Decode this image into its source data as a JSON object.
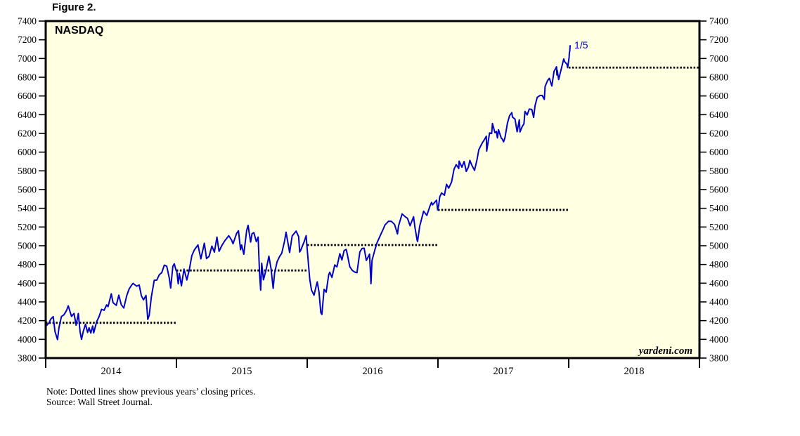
{
  "figure_label": "Figure 2.",
  "notes": {
    "note": "Note: Dotted lines show previous years’ closing prices.",
    "source": "Source: Wall Street Journal."
  },
  "chart_data": {
    "type": "line",
    "title": "NASDAQ",
    "watermark": "yardeni.com",
    "plot_background": "#FFFFE1",
    "frame_color": "#000000",
    "x_range": [
      "2014-01-01",
      "2019-01-01"
    ],
    "ylim": [
      3800,
      7400
    ],
    "yticks": [
      3800,
      4000,
      4200,
      4400,
      4600,
      4800,
      5000,
      5200,
      5400,
      5600,
      5800,
      6000,
      6200,
      6400,
      6600,
      6800,
      7000,
      7200,
      7400
    ],
    "year_labels": [
      "2014",
      "2015",
      "2016",
      "2017",
      "2018"
    ],
    "annotation": {
      "text": "1/5",
      "date": "2018-01-05",
      "value": 7137
    },
    "reference_lines": [
      {
        "value": 4176.59,
        "start": "2014-01-01",
        "end": "2015-01-01"
      },
      {
        "value": 4736.05,
        "start": "2015-01-01",
        "end": "2016-01-01"
      },
      {
        "value": 5007.41,
        "start": "2016-01-01",
        "end": "2017-01-01"
      },
      {
        "value": 5383.12,
        "start": "2017-01-01",
        "end": "2018-01-01"
      },
      {
        "value": 6903.39,
        "start": "2018-01-01",
        "end": "2019-01-01"
      }
    ],
    "series": [
      {
        "name": "NASDAQ",
        "color": "#0000CD",
        "points": [
          [
            "2014-01-02",
            4143
          ],
          [
            "2014-01-10",
            4174
          ],
          [
            "2014-01-15",
            4215
          ],
          [
            "2014-01-22",
            4243
          ],
          [
            "2014-01-27",
            4084
          ],
          [
            "2014-02-03",
            3997
          ],
          [
            "2014-02-07",
            4126
          ],
          [
            "2014-02-14",
            4244
          ],
          [
            "2014-02-21",
            4263
          ],
          [
            "2014-02-28",
            4308
          ],
          [
            "2014-03-05",
            4358
          ],
          [
            "2014-03-14",
            4245
          ],
          [
            "2014-03-21",
            4277
          ],
          [
            "2014-03-27",
            4151
          ],
          [
            "2014-04-02",
            4276
          ],
          [
            "2014-04-07",
            4080
          ],
          [
            "2014-04-11",
            4000
          ],
          [
            "2014-04-16",
            4086
          ],
          [
            "2014-04-22",
            4161
          ],
          [
            "2014-04-28",
            4074
          ],
          [
            "2014-05-02",
            4124
          ],
          [
            "2014-05-07",
            4067
          ],
          [
            "2014-05-12",
            4143
          ],
          [
            "2014-05-15",
            4069
          ],
          [
            "2014-05-23",
            4186
          ],
          [
            "2014-05-30",
            4243
          ],
          [
            "2014-06-06",
            4321
          ],
          [
            "2014-06-13",
            4311
          ],
          [
            "2014-06-20",
            4368
          ],
          [
            "2014-06-24",
            4350
          ],
          [
            "2014-07-03",
            4486
          ],
          [
            "2014-07-08",
            4392
          ],
          [
            "2014-07-17",
            4363
          ],
          [
            "2014-07-24",
            4472
          ],
          [
            "2014-07-31",
            4370
          ],
          [
            "2014-08-07",
            4335
          ],
          [
            "2014-08-15",
            4465
          ],
          [
            "2014-08-22",
            4539
          ],
          [
            "2014-08-29",
            4580
          ],
          [
            "2014-09-02",
            4598
          ],
          [
            "2014-09-12",
            4568
          ],
          [
            "2014-09-19",
            4580
          ],
          [
            "2014-09-25",
            4466
          ],
          [
            "2014-10-01",
            4422
          ],
          [
            "2014-10-08",
            4469
          ],
          [
            "2014-10-13",
            4213
          ],
          [
            "2014-10-17",
            4258
          ],
          [
            "2014-10-23",
            4453
          ],
          [
            "2014-10-31",
            4631
          ],
          [
            "2014-11-07",
            4633
          ],
          [
            "2014-11-14",
            4689
          ],
          [
            "2014-11-21",
            4713
          ],
          [
            "2014-11-28",
            4792
          ],
          [
            "2014-12-05",
            4781
          ],
          [
            "2014-12-12",
            4654
          ],
          [
            "2014-12-16",
            4548
          ],
          [
            "2014-12-22",
            4782
          ],
          [
            "2014-12-26",
            4807
          ],
          [
            "2014-12-31",
            4736
          ],
          [
            "2015-01-02",
            4727
          ],
          [
            "2015-01-06",
            4593
          ],
          [
            "2015-01-09",
            4704
          ],
          [
            "2015-01-15",
            4571
          ],
          [
            "2015-01-22",
            4750
          ],
          [
            "2015-01-30",
            4635
          ],
          [
            "2015-02-06",
            4744
          ],
          [
            "2015-02-13",
            4894
          ],
          [
            "2015-02-20",
            4956
          ],
          [
            "2015-03-02",
            5008
          ],
          [
            "2015-03-10",
            4860
          ],
          [
            "2015-03-20",
            5026
          ],
          [
            "2015-03-26",
            4863
          ],
          [
            "2015-04-02",
            4887
          ],
          [
            "2015-04-10",
            4996
          ],
          [
            "2015-04-17",
            4932
          ],
          [
            "2015-04-24",
            5092
          ],
          [
            "2015-04-30",
            4941
          ],
          [
            "2015-05-08",
            5004
          ],
          [
            "2015-05-15",
            5048
          ],
          [
            "2015-05-27",
            5107
          ],
          [
            "2015-06-04",
            5059
          ],
          [
            "2015-06-08",
            5021
          ],
          [
            "2015-06-18",
            5133
          ],
          [
            "2015-06-23",
            5160
          ],
          [
            "2015-06-29",
            4958
          ],
          [
            "2015-07-02",
            5009
          ],
          [
            "2015-07-08",
            4909
          ],
          [
            "2015-07-16",
            5163
          ],
          [
            "2015-07-20",
            5218
          ],
          [
            "2015-07-27",
            5040
          ],
          [
            "2015-07-31",
            5128
          ],
          [
            "2015-08-05",
            5140
          ],
          [
            "2015-08-12",
            5044
          ],
          [
            "2015-08-17",
            5092
          ],
          [
            "2015-08-21",
            4706
          ],
          [
            "2015-08-24",
            4526
          ],
          [
            "2015-08-27",
            4813
          ],
          [
            "2015-09-01",
            4636
          ],
          [
            "2015-09-09",
            4756
          ],
          [
            "2015-09-16",
            4889
          ],
          [
            "2015-09-22",
            4757
          ],
          [
            "2015-09-28",
            4544
          ],
          [
            "2015-10-02",
            4708
          ],
          [
            "2015-10-09",
            4830
          ],
          [
            "2015-10-16",
            4886
          ],
          [
            "2015-10-22",
            4920
          ],
          [
            "2015-10-30",
            5054
          ],
          [
            "2015-11-03",
            5145
          ],
          [
            "2015-11-13",
            4928
          ],
          [
            "2015-11-20",
            5105
          ],
          [
            "2015-12-01",
            5156
          ],
          [
            "2015-12-08",
            5098
          ],
          [
            "2015-12-11",
            4933
          ],
          [
            "2015-12-14",
            4952
          ],
          [
            "2015-12-24",
            5048
          ],
          [
            "2015-12-29",
            5107
          ],
          [
            "2015-12-31",
            5007
          ],
          [
            "2016-01-08",
            4644
          ],
          [
            "2016-01-13",
            4527
          ],
          [
            "2016-01-20",
            4471
          ],
          [
            "2016-01-26",
            4568
          ],
          [
            "2016-01-29",
            4614
          ],
          [
            "2016-02-03",
            4504
          ],
          [
            "2016-02-08",
            4284
          ],
          [
            "2016-02-11",
            4266
          ],
          [
            "2016-02-17",
            4534
          ],
          [
            "2016-02-23",
            4504
          ],
          [
            "2016-03-01",
            4690
          ],
          [
            "2016-03-04",
            4717
          ],
          [
            "2016-03-10",
            4662
          ],
          [
            "2016-03-18",
            4795
          ],
          [
            "2016-03-24",
            4774
          ],
          [
            "2016-04-01",
            4915
          ],
          [
            "2016-04-07",
            4848
          ],
          [
            "2016-04-13",
            4948
          ],
          [
            "2016-04-19",
            4960
          ],
          [
            "2016-04-22",
            4906
          ],
          [
            "2016-04-29",
            4775
          ],
          [
            "2016-05-06",
            4736
          ],
          [
            "2016-05-13",
            4718
          ],
          [
            "2016-05-19",
            4712
          ],
          [
            "2016-05-27",
            4934
          ],
          [
            "2016-06-02",
            4971
          ],
          [
            "2016-06-08",
            4974
          ],
          [
            "2016-06-14",
            4843
          ],
          [
            "2016-06-23",
            4910
          ],
          [
            "2016-06-27",
            4594
          ],
          [
            "2016-06-30",
            4843
          ],
          [
            "2016-07-08",
            4957
          ],
          [
            "2016-07-14",
            5034
          ],
          [
            "2016-07-22",
            5100
          ],
          [
            "2016-08-01",
            5184
          ],
          [
            "2016-08-05",
            5221
          ],
          [
            "2016-08-15",
            5262
          ],
          [
            "2016-08-23",
            5260
          ],
          [
            "2016-09-01",
            5227
          ],
          [
            "2016-09-09",
            5126
          ],
          [
            "2016-09-12",
            5211
          ],
          [
            "2016-09-22",
            5340
          ],
          [
            "2016-09-30",
            5312
          ],
          [
            "2016-10-07",
            5292
          ],
          [
            "2016-10-14",
            5214
          ],
          [
            "2016-10-24",
            5310
          ],
          [
            "2016-10-28",
            5190
          ],
          [
            "2016-11-03",
            5058
          ],
          [
            "2016-11-04",
            5046
          ],
          [
            "2016-11-10",
            5208
          ],
          [
            "2016-11-21",
            5369
          ],
          [
            "2016-11-30",
            5324
          ],
          [
            "2016-12-08",
            5417
          ],
          [
            "2016-12-13",
            5463
          ],
          [
            "2016-12-16",
            5437
          ],
          [
            "2016-12-27",
            5487
          ],
          [
            "2016-12-30",
            5383
          ],
          [
            "2017-01-03",
            5429
          ],
          [
            "2017-01-06",
            5521
          ],
          [
            "2017-01-11",
            5563
          ],
          [
            "2017-01-19",
            5540
          ],
          [
            "2017-01-25",
            5656
          ],
          [
            "2017-01-31",
            5615
          ],
          [
            "2017-02-08",
            5682
          ],
          [
            "2017-02-15",
            5819
          ],
          [
            "2017-02-21",
            5866
          ],
          [
            "2017-02-28",
            5825
          ],
          [
            "2017-03-01",
            5904
          ],
          [
            "2017-03-09",
            5839
          ],
          [
            "2017-03-15",
            5900
          ],
          [
            "2017-03-21",
            5794
          ],
          [
            "2017-03-27",
            5840
          ],
          [
            "2017-03-31",
            5912
          ],
          [
            "2017-04-05",
            5864
          ],
          [
            "2017-04-13",
            5805
          ],
          [
            "2017-04-20",
            5917
          ],
          [
            "2017-04-25",
            6025
          ],
          [
            "2017-04-28",
            6048
          ],
          [
            "2017-05-05",
            6101
          ],
          [
            "2017-05-10",
            6129
          ],
          [
            "2017-05-16",
            6170
          ],
          [
            "2017-05-17",
            6011
          ],
          [
            "2017-05-22",
            6134
          ],
          [
            "2017-05-25",
            6205
          ],
          [
            "2017-05-31",
            6199
          ],
          [
            "2017-06-02",
            6306
          ],
          [
            "2017-06-09",
            6208
          ],
          [
            "2017-06-13",
            6220
          ],
          [
            "2017-06-16",
            6152
          ],
          [
            "2017-06-19",
            6239
          ],
          [
            "2017-06-27",
            6147
          ],
          [
            "2017-06-29",
            6144
          ],
          [
            "2017-07-03",
            6110
          ],
          [
            "2017-07-07",
            6153
          ],
          [
            "2017-07-14",
            6312
          ],
          [
            "2017-07-20",
            6390
          ],
          [
            "2017-07-26",
            6422
          ],
          [
            "2017-07-28",
            6375
          ],
          [
            "2017-08-04",
            6352
          ],
          [
            "2017-08-10",
            6217
          ],
          [
            "2017-08-16",
            6345
          ],
          [
            "2017-08-18",
            6216
          ],
          [
            "2017-08-24",
            6272
          ],
          [
            "2017-08-29",
            6302
          ],
          [
            "2017-09-01",
            6435
          ],
          [
            "2017-09-07",
            6397
          ],
          [
            "2017-09-13",
            6460
          ],
          [
            "2017-09-20",
            6456
          ],
          [
            "2017-09-25",
            6371
          ],
          [
            "2017-09-29",
            6496
          ],
          [
            "2017-10-05",
            6585
          ],
          [
            "2017-10-13",
            6606
          ],
          [
            "2017-10-19",
            6605
          ],
          [
            "2017-10-25",
            6564
          ],
          [
            "2017-10-27",
            6701
          ],
          [
            "2017-11-03",
            6764
          ],
          [
            "2017-11-08",
            6789
          ],
          [
            "2017-11-15",
            6706
          ],
          [
            "2017-11-21",
            6862
          ],
          [
            "2017-11-28",
            6912
          ],
          [
            "2017-11-29",
            6824
          ],
          [
            "2017-11-30",
            6874
          ],
          [
            "2017-12-04",
            6775
          ],
          [
            "2017-12-08",
            6840
          ],
          [
            "2017-12-18",
            6995
          ],
          [
            "2017-12-21",
            6965
          ],
          [
            "2017-12-27",
            6939
          ],
          [
            "2017-12-29",
            6903
          ],
          [
            "2018-01-02",
            7007
          ],
          [
            "2018-01-03",
            7066
          ],
          [
            "2018-01-04",
            7078
          ],
          [
            "2018-01-05",
            7137
          ]
        ]
      }
    ]
  }
}
